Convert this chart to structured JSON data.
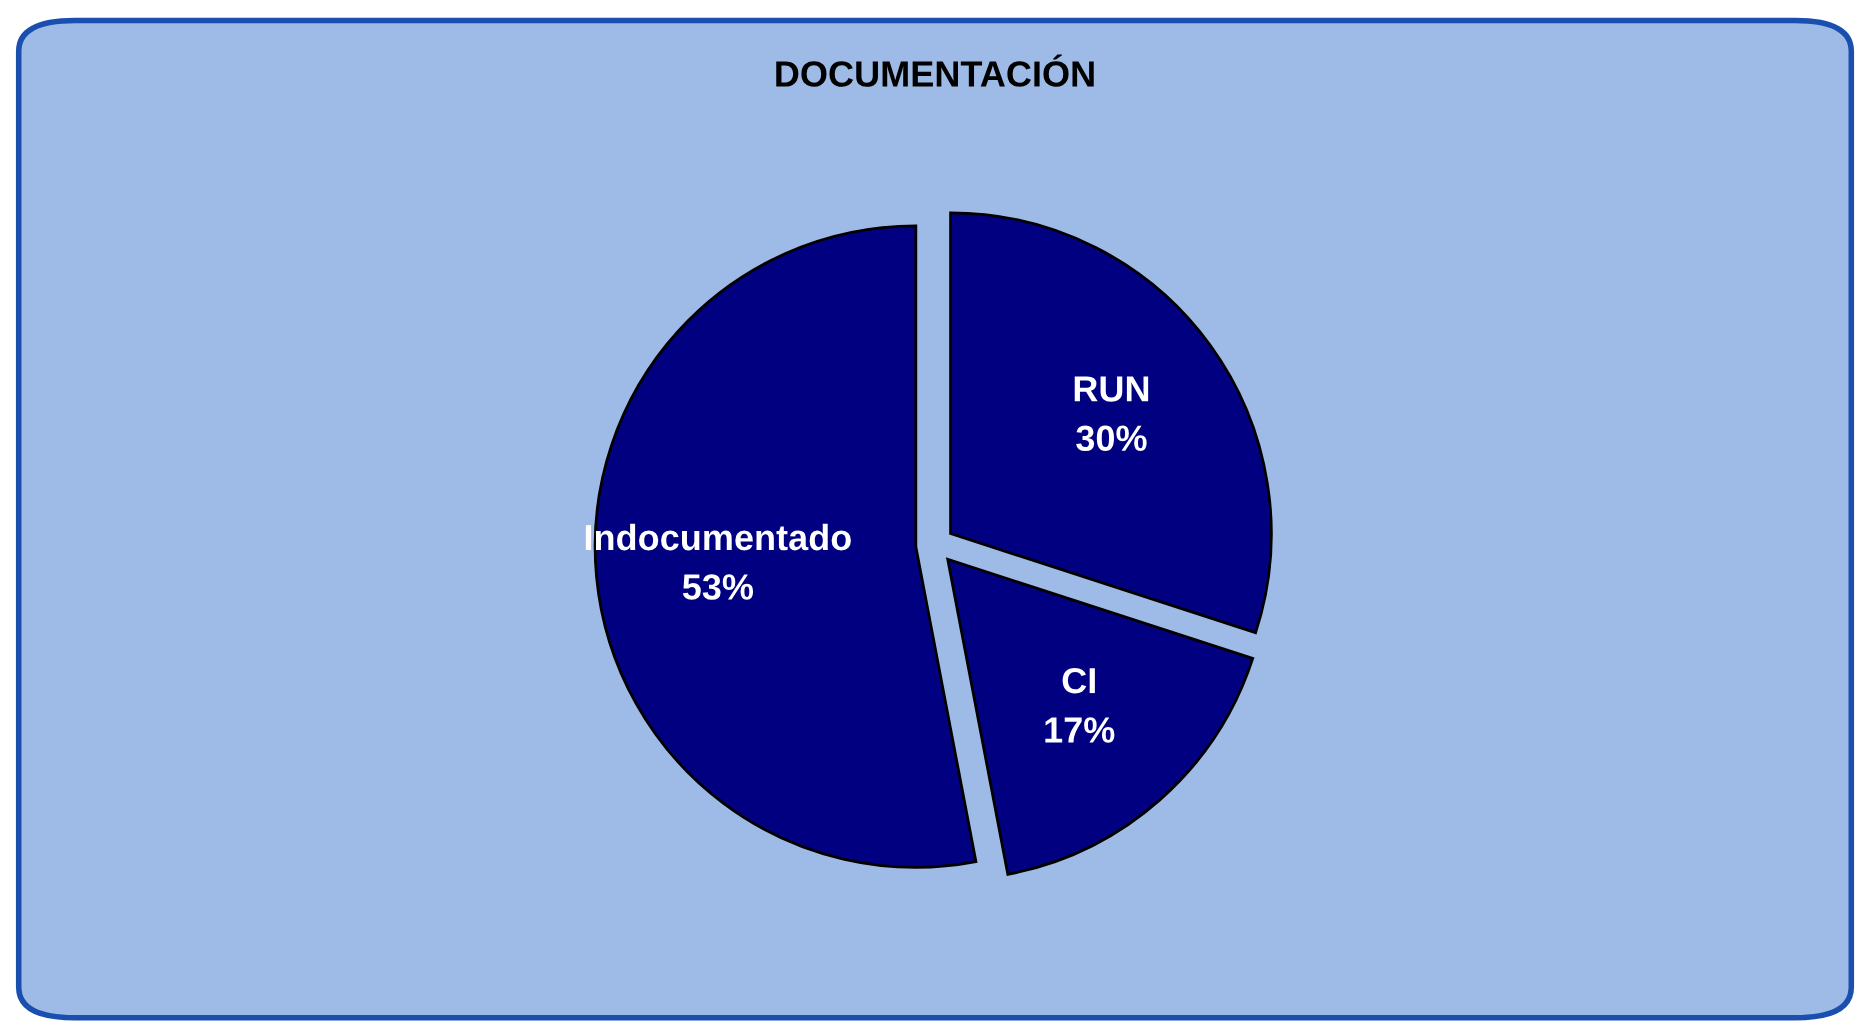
{
  "chart_data": {
    "type": "pie",
    "title": "DOCUMENTACIÓN",
    "categories": [
      "RUN",
      "CI",
      "Indocumentado"
    ],
    "values": [
      30,
      17,
      53
    ],
    "value_labels": [
      "30%",
      "17%",
      "53%"
    ],
    "colors": [
      "#000080",
      "#000080",
      "#000080"
    ]
  }
}
